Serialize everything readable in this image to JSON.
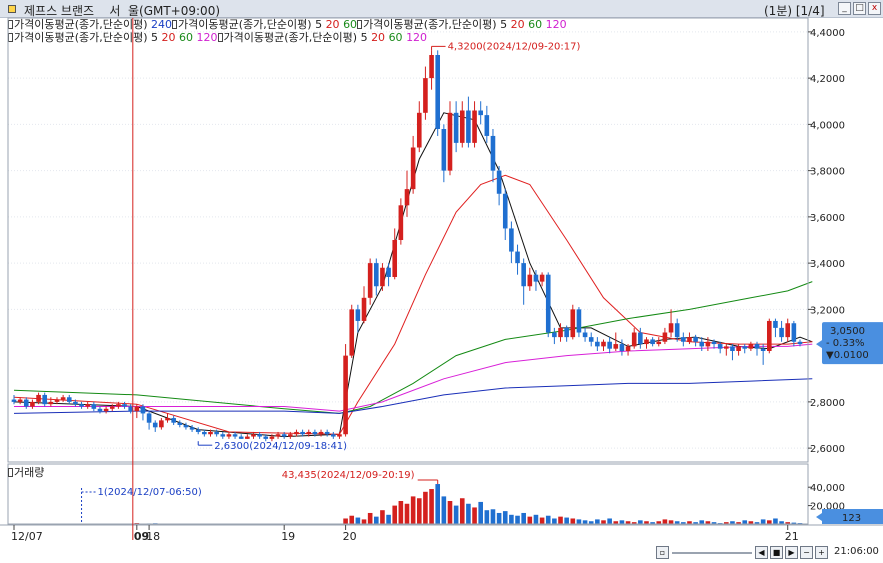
{
  "window": {
    "title": "제프스 브랜즈    서  울(GMT+09:00)",
    "period": "(1분) [1/4]"
  },
  "legend": {
    "row1": [
      {
        "text": "가격이동평균(종가,단순이평)",
        "color": "black"
      },
      {
        "text": "240",
        "color": "blue"
      },
      {
        "text": "가격이동평균(종가,단순이평)",
        "color": "black"
      },
      {
        "text": "5",
        "color": "black"
      },
      {
        "text": "20",
        "color": "red"
      },
      {
        "text": "60",
        "color": "green"
      },
      {
        "text": "가격이동평균(종가,단순이평)",
        "color": "black"
      },
      {
        "text": "5",
        "color": "black"
      },
      {
        "text": "20",
        "color": "red"
      },
      {
        "text": "60",
        "color": "green"
      },
      {
        "text": "120",
        "color": "mag"
      }
    ],
    "row2": [
      {
        "text": "가격이동평균(종가,단순이평)",
        "color": "black"
      },
      {
        "text": "5",
        "color": "black"
      },
      {
        "text": "20",
        "color": "red"
      },
      {
        "text": "60",
        "color": "green"
      },
      {
        "text": "120",
        "color": "mag"
      },
      {
        "text": "가격이동평균(종가,단순이평)",
        "color": "black"
      },
      {
        "text": "5",
        "color": "black"
      },
      {
        "text": "20",
        "color": "red"
      },
      {
        "text": "60",
        "color": "green"
      },
      {
        "text": "120",
        "color": "mag"
      }
    ],
    "volume_label": "거래량"
  },
  "chart_data": {
    "type": "candlestick",
    "price_axis": {
      "ticks": [
        "4,4000",
        "4,2000",
        "4,0000",
        "3,8000",
        "3,6000",
        "3,4000",
        "3,2000",
        "2,8000",
        "2,6000"
      ],
      "ylim": [
        2.54,
        4.46
      ]
    },
    "volume_axis": {
      "ticks": [
        "40,000",
        "20,000"
      ],
      "ylim": [
        0,
        50000
      ]
    },
    "x_ticks": [
      "12/07",
      "09",
      "18",
      "19",
      "20",
      "21"
    ],
    "x_tick_indices": [
      0,
      20,
      22,
      44,
      54,
      126
    ],
    "candles": [
      [
        2.81,
        2.8,
        2.83,
        2.79
      ],
      [
        2.8,
        2.81,
        2.82,
        2.79
      ],
      [
        2.81,
        2.78,
        2.82,
        2.77
      ],
      [
        2.78,
        2.8,
        2.81,
        2.77
      ],
      [
        2.8,
        2.83,
        2.84,
        2.79
      ],
      [
        2.83,
        2.79,
        2.84,
        2.78
      ],
      [
        2.79,
        2.8,
        2.82,
        2.78
      ],
      [
        2.8,
        2.81,
        2.82,
        2.79
      ],
      [
        2.81,
        2.82,
        2.83,
        2.8
      ],
      [
        2.82,
        2.8,
        2.83,
        2.79
      ],
      [
        2.8,
        2.79,
        2.81,
        2.78
      ],
      [
        2.79,
        2.78,
        2.8,
        2.77
      ],
      [
        2.78,
        2.79,
        2.8,
        2.77
      ],
      [
        2.79,
        2.77,
        2.8,
        2.76
      ],
      [
        2.77,
        2.76,
        2.78,
        2.75
      ],
      [
        2.76,
        2.77,
        2.78,
        2.75
      ],
      [
        2.77,
        2.78,
        2.79,
        2.76
      ],
      [
        2.78,
        2.79,
        2.8,
        2.77
      ],
      [
        2.79,
        2.78,
        2.8,
        2.77
      ],
      [
        2.78,
        2.76,
        2.79,
        2.75
      ],
      [
        2.76,
        2.78,
        2.79,
        2.73
      ],
      [
        2.78,
        2.75,
        2.79,
        2.72
      ],
      [
        2.75,
        2.71,
        2.76,
        2.68
      ],
      [
        2.71,
        2.69,
        2.72,
        2.67
      ],
      [
        2.69,
        2.72,
        2.73,
        2.68
      ],
      [
        2.72,
        2.73,
        2.75,
        2.71
      ],
      [
        2.73,
        2.71,
        2.74,
        2.7
      ],
      [
        2.71,
        2.7,
        2.72,
        2.69
      ],
      [
        2.7,
        2.69,
        2.71,
        2.68
      ],
      [
        2.69,
        2.68,
        2.7,
        2.67
      ],
      [
        2.68,
        2.67,
        2.69,
        2.66
      ],
      [
        2.67,
        2.66,
        2.68,
        2.65
      ],
      [
        2.66,
        2.67,
        2.68,
        2.65
      ],
      [
        2.67,
        2.66,
        2.68,
        2.65
      ],
      [
        2.66,
        2.65,
        2.67,
        2.64
      ],
      [
        2.65,
        2.66,
        2.67,
        2.64
      ],
      [
        2.66,
        2.65,
        2.67,
        2.64
      ],
      [
        2.65,
        2.64,
        2.66,
        2.64
      ],
      [
        2.64,
        2.65,
        2.66,
        2.64
      ],
      [
        2.65,
        2.66,
        2.67,
        2.64
      ],
      [
        2.66,
        2.65,
        2.67,
        2.64
      ],
      [
        2.65,
        2.64,
        2.66,
        2.63
      ],
      [
        2.64,
        2.65,
        2.66,
        2.63
      ],
      [
        2.65,
        2.66,
        2.67,
        2.64
      ],
      [
        2.66,
        2.65,
        2.67,
        2.64
      ],
      [
        2.65,
        2.66,
        2.67,
        2.64
      ],
      [
        2.66,
        2.67,
        2.68,
        2.65
      ],
      [
        2.67,
        2.66,
        2.68,
        2.65
      ],
      [
        2.66,
        2.67,
        2.68,
        2.65
      ],
      [
        2.67,
        2.66,
        2.68,
        2.65
      ],
      [
        2.66,
        2.67,
        2.68,
        2.65
      ],
      [
        2.67,
        2.66,
        2.68,
        2.65
      ],
      [
        2.66,
        2.65,
        2.67,
        2.64
      ],
      [
        2.65,
        2.66,
        2.67,
        2.64
      ],
      [
        2.66,
        3.0,
        3.05,
        2.65
      ],
      [
        3.0,
        3.2,
        3.22,
        2.99
      ],
      [
        3.2,
        3.15,
        3.22,
        3.1
      ],
      [
        3.15,
        3.25,
        3.3,
        3.14
      ],
      [
        3.25,
        3.4,
        3.42,
        3.22
      ],
      [
        3.4,
        3.3,
        3.42,
        3.26
      ],
      [
        3.3,
        3.38,
        3.4,
        3.28
      ],
      [
        3.38,
        3.34,
        3.4,
        3.3
      ],
      [
        3.34,
        3.5,
        3.55,
        3.33
      ],
      [
        3.5,
        3.65,
        3.68,
        3.48
      ],
      [
        3.65,
        3.72,
        3.8,
        3.6
      ],
      [
        3.72,
        3.9,
        3.95,
        3.7
      ],
      [
        3.9,
        4.05,
        4.1,
        3.88
      ],
      [
        4.05,
        4.2,
        4.25,
        4.02
      ],
      [
        4.2,
        4.3,
        4.32,
        4.15
      ],
      [
        4.3,
        3.98,
        4.32,
        3.95
      ],
      [
        3.98,
        3.8,
        4.0,
        3.75
      ],
      [
        3.8,
        4.05,
        4.1,
        3.78
      ],
      [
        4.05,
        3.92,
        4.1,
        3.88
      ],
      [
        3.92,
        4.06,
        4.1,
        3.9
      ],
      [
        4.06,
        3.92,
        4.12,
        3.9
      ],
      [
        3.92,
        4.06,
        4.1,
        3.9
      ],
      [
        4.06,
        4.04,
        4.1,
        4.0
      ],
      [
        4.04,
        3.95,
        4.08,
        3.92
      ],
      [
        3.95,
        3.8,
        3.98,
        3.75
      ],
      [
        3.8,
        3.7,
        3.82,
        3.65
      ],
      [
        3.7,
        3.55,
        3.72,
        3.5
      ],
      [
        3.55,
        3.45,
        3.58,
        3.4
      ],
      [
        3.45,
        3.4,
        3.48,
        3.35
      ],
      [
        3.4,
        3.3,
        3.42,
        3.22
      ],
      [
        3.3,
        3.35,
        3.38,
        3.28
      ],
      [
        3.35,
        3.32,
        3.37,
        3.28
      ],
      [
        3.32,
        3.35,
        3.36,
        3.3
      ],
      [
        3.35,
        3.1,
        3.36,
        3.08
      ],
      [
        3.1,
        3.08,
        3.12,
        3.05
      ],
      [
        3.08,
        3.12,
        3.14,
        3.06
      ],
      [
        3.12,
        3.08,
        3.13,
        3.06
      ],
      [
        3.08,
        3.2,
        3.22,
        3.07
      ],
      [
        3.2,
        3.1,
        3.21,
        3.08
      ],
      [
        3.1,
        3.08,
        3.12,
        3.06
      ],
      [
        3.08,
        3.06,
        3.1,
        3.04
      ],
      [
        3.06,
        3.04,
        3.08,
        3.02
      ],
      [
        3.04,
        3.06,
        3.07,
        3.02
      ],
      [
        3.06,
        3.03,
        3.08,
        3.01
      ],
      [
        3.03,
        3.05,
        3.1,
        3.02
      ],
      [
        3.05,
        3.02,
        3.07,
        3.0
      ],
      [
        3.02,
        3.04,
        3.05,
        3.0
      ],
      [
        3.04,
        3.1,
        3.12,
        3.03
      ],
      [
        3.1,
        3.05,
        3.12,
        3.03
      ],
      [
        3.05,
        3.07,
        3.08,
        3.03
      ],
      [
        3.07,
        3.05,
        3.08,
        3.04
      ],
      [
        3.05,
        3.06,
        3.08,
        3.04
      ],
      [
        3.06,
        3.1,
        3.12,
        3.05
      ],
      [
        3.1,
        3.14,
        3.2,
        3.08
      ],
      [
        3.14,
        3.08,
        3.16,
        3.06
      ],
      [
        3.08,
        3.06,
        3.1,
        3.04
      ],
      [
        3.06,
        3.08,
        3.1,
        3.05
      ],
      [
        3.08,
        3.06,
        3.09,
        3.04
      ],
      [
        3.06,
        3.04,
        3.08,
        3.02
      ],
      [
        3.04,
        3.06,
        3.08,
        3.02
      ],
      [
        3.06,
        3.05,
        3.07,
        3.03
      ],
      [
        3.05,
        3.03,
        3.06,
        3.01
      ],
      [
        3.03,
        3.04,
        3.05,
        3.0
      ],
      [
        3.04,
        3.02,
        3.05,
        2.98
      ],
      [
        3.02,
        3.04,
        3.05,
        3.0
      ],
      [
        3.04,
        3.03,
        3.05,
        3.01
      ],
      [
        3.03,
        3.05,
        3.06,
        3.02
      ],
      [
        3.05,
        3.03,
        3.06,
        3.0
      ],
      [
        3.03,
        3.02,
        3.05,
        2.96
      ],
      [
        3.02,
        3.15,
        3.16,
        3.01
      ],
      [
        3.15,
        3.12,
        3.16,
        3.08
      ],
      [
        3.12,
        3.08,
        3.15,
        3.06
      ],
      [
        3.08,
        3.14,
        3.16,
        3.06
      ],
      [
        3.14,
        3.06,
        3.15,
        3.04
      ],
      [
        3.06,
        3.05,
        3.07,
        3.04
      ]
    ],
    "volumes": [
      400,
      300,
      200,
      500,
      300,
      200,
      300,
      400,
      200,
      300,
      200,
      100,
      200,
      300,
      200,
      200,
      300,
      100,
      200,
      300,
      1000,
      400,
      600,
      800,
      300,
      200,
      400,
      300,
      200,
      300,
      200,
      100,
      200,
      300,
      200,
      300,
      200,
      200,
      400,
      300,
      200,
      500,
      300,
      200,
      300,
      200,
      400,
      300,
      200,
      300,
      500,
      200,
      300,
      400,
      6000,
      9000,
      7000,
      5000,
      12000,
      8000,
      15000,
      10000,
      20000,
      25000,
      22000,
      30000,
      28000,
      35000,
      38000,
      43435,
      30000,
      25000,
      20000,
      28000,
      22000,
      18000,
      24000,
      15000,
      16000,
      12000,
      14000,
      10000,
      9000,
      12000,
      8000,
      10000,
      7000,
      9000,
      6000,
      8000,
      7000,
      6000,
      5000,
      4000,
      3000,
      5000,
      4000,
      6000,
      3000,
      4000,
      3000,
      2000,
      4000,
      3000,
      2000,
      3000,
      5000,
      4000,
      3000,
      2000,
      3000,
      2000,
      4000,
      3000,
      2000,
      1000,
      2000,
      3000,
      2000,
      4000,
      3000,
      2000,
      5000,
      4000,
      6000,
      3000,
      2000,
      1500,
      1000
    ],
    "ma_lines": [
      {
        "period": "5",
        "color": "#111111",
        "points": [
          [
            0,
            2.8
          ],
          [
            20,
            2.78
          ],
          [
            30,
            2.68
          ],
          [
            44,
            2.65
          ],
          [
            53,
            2.66
          ],
          [
            56,
            3.1
          ],
          [
            60,
            3.3
          ],
          [
            66,
            3.85
          ],
          [
            70,
            4.05
          ],
          [
            75,
            4.02
          ],
          [
            79,
            3.8
          ],
          [
            84,
            3.4
          ],
          [
            89,
            3.12
          ],
          [
            94,
            3.12
          ],
          [
            100,
            3.04
          ],
          [
            106,
            3.07
          ],
          [
            111,
            3.08
          ],
          [
            118,
            3.04
          ],
          [
            123,
            3.03
          ],
          [
            128,
            3.08
          ],
          [
            130,
            3.06
          ]
        ]
      },
      {
        "period": "20",
        "color": "#e02020",
        "points": [
          [
            0,
            2.82
          ],
          [
            20,
            2.79
          ],
          [
            35,
            2.67
          ],
          [
            53,
            2.66
          ],
          [
            56,
            2.8
          ],
          [
            62,
            3.05
          ],
          [
            67,
            3.35
          ],
          [
            72,
            3.62
          ],
          [
            76,
            3.74
          ],
          [
            80,
            3.78
          ],
          [
            84,
            3.74
          ],
          [
            90,
            3.5
          ],
          [
            96,
            3.25
          ],
          [
            102,
            3.1
          ],
          [
            110,
            3.06
          ],
          [
            118,
            3.05
          ],
          [
            126,
            3.05
          ],
          [
            130,
            3.06
          ]
        ]
      },
      {
        "period": "60",
        "color": "#148a14",
        "points": [
          [
            0,
            2.85
          ],
          [
            20,
            2.83
          ],
          [
            44,
            2.77
          ],
          [
            53,
            2.75
          ],
          [
            58,
            2.78
          ],
          [
            65,
            2.88
          ],
          [
            72,
            3.0
          ],
          [
            80,
            3.07
          ],
          [
            90,
            3.11
          ],
          [
            100,
            3.16
          ],
          [
            110,
            3.2
          ],
          [
            120,
            3.25
          ],
          [
            126,
            3.28
          ],
          [
            130,
            3.32
          ]
        ]
      },
      {
        "period": "120",
        "color": "#d820d8",
        "points": [
          [
            0,
            2.78
          ],
          [
            20,
            2.78
          ],
          [
            44,
            2.78
          ],
          [
            53,
            2.76
          ],
          [
            60,
            2.8
          ],
          [
            70,
            2.9
          ],
          [
            80,
            2.97
          ],
          [
            90,
            3.0
          ],
          [
            100,
            3.02
          ],
          [
            110,
            3.03
          ],
          [
            120,
            3.04
          ],
          [
            126,
            3.04
          ],
          [
            130,
            3.05
          ]
        ]
      },
      {
        "period": "240",
        "color": "#1a2fb8",
        "points": [
          [
            0,
            2.75
          ],
          [
            20,
            2.76
          ],
          [
            44,
            2.76
          ],
          [
            53,
            2.75
          ],
          [
            60,
            2.78
          ],
          [
            70,
            2.83
          ],
          [
            80,
            2.86
          ],
          [
            90,
            2.87
          ],
          [
            100,
            2.88
          ],
          [
            110,
            2.88
          ],
          [
            120,
            2.89
          ],
          [
            130,
            2.9
          ]
        ]
      }
    ],
    "annotations": {
      "high": "4,3200(2024/12/09-20:17)",
      "low": "2,6300(2024/12/09-18:41)",
      "vol_high": "43,435(2024/12/09-20:19)",
      "vol_low": "1(2024/12/07-06:50)"
    },
    "current": {
      "price": "3,0500",
      "change_pct": "- 0.33%",
      "change": "▼0.0100",
      "volume": "123"
    },
    "time": "21:06:00"
  }
}
